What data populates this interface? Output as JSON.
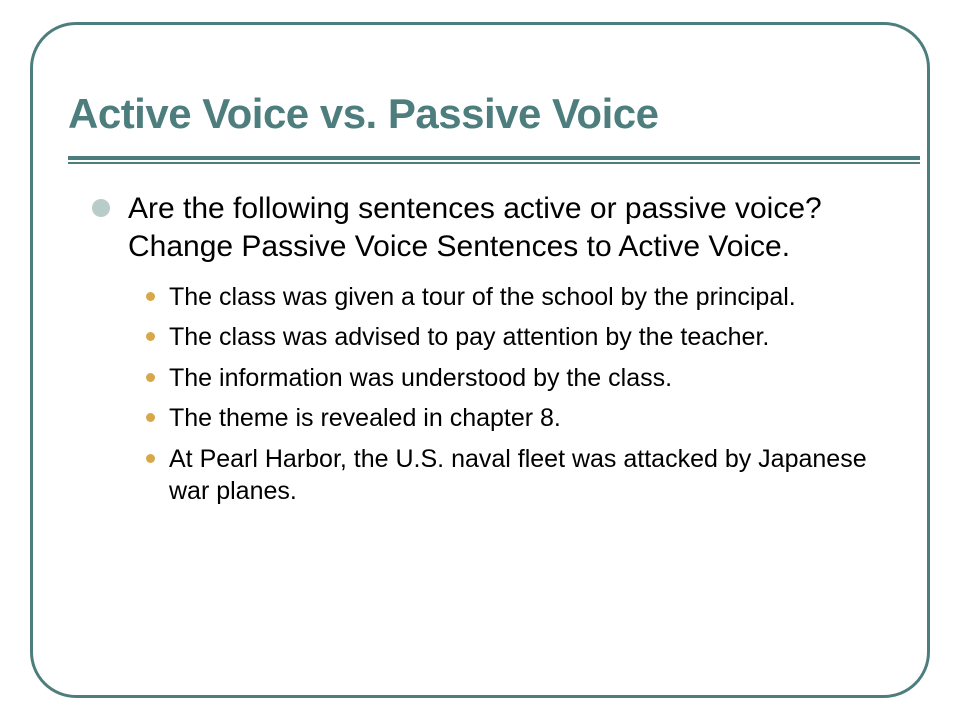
{
  "colors": {
    "frame_border": "#4d7d7d",
    "title": "#4d7d7d",
    "rule": "#4d7d7d",
    "l1_bullet": "#b8ccc8",
    "l2_bullet": "#d6a84a",
    "body_text": "#000000",
    "background": "#ffffff"
  },
  "title": {
    "text": "Active Voice vs. Passive Voice",
    "fontsize": 42
  },
  "content": {
    "intro": "Are the following sentences active or passive voice?  Change Passive Voice Sentences to Active Voice.",
    "items": [
      "The class was given a tour of the school by the principal.",
      "The class was advised to pay attention by the teacher.",
      "The information was understood by the class.",
      "The theme is revealed in chapter 8.",
      "At Pearl Harbor, the U.S. naval fleet was attacked by Japanese war planes."
    ]
  }
}
